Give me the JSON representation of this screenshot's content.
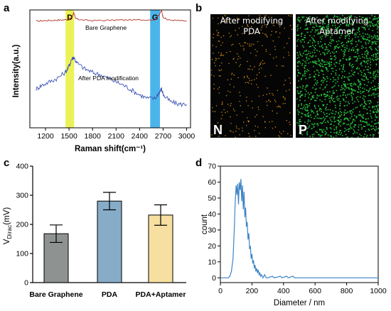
{
  "panels": {
    "a": "a",
    "b": "b",
    "c": "c",
    "d": "d"
  },
  "chart_data": [
    {
      "id": "raman",
      "type": "line",
      "xlabel": "Raman shift(cm⁻¹)",
      "ylabel": "Intensity(a.u.)",
      "xlim": [
        1000,
        3050
      ],
      "x_ticks": [
        1200,
        1500,
        1800,
        2100,
        2400,
        2700,
        3000
      ],
      "y_ticks": [],
      "bands": [
        {
          "label": "D",
          "from": 1455,
          "to": 1565,
          "color": "#e8f03a"
        },
        {
          "label": "G",
          "from": 2535,
          "to": 2660,
          "color": "#2ba8e8"
        }
      ],
      "series": [
        {
          "name": "Bare Graphene",
          "color": "#b5352b",
          "points": [
            [
              1080,
              0.905
            ],
            [
              1200,
              0.91
            ],
            [
              1300,
              0.912
            ],
            [
              1400,
              0.915
            ],
            [
              1500,
              0.918
            ],
            [
              1540,
              0.94
            ],
            [
              1560,
              0.98
            ],
            [
              1580,
              0.93
            ],
            [
              1650,
              0.915
            ],
            [
              1800,
              0.91
            ],
            [
              2000,
              0.912
            ],
            [
              2200,
              0.915
            ],
            [
              2400,
              0.915
            ],
            [
              2600,
              0.918
            ],
            [
              2650,
              0.96
            ],
            [
              2680,
              0.995
            ],
            [
              2700,
              0.94
            ],
            [
              2760,
              0.915
            ],
            [
              2900,
              0.91
            ],
            [
              3000,
              0.905
            ]
          ]
        },
        {
          "name": "After PDA modification",
          "color": "#3f55b4",
          "points": [
            [
              1080,
              0.33
            ],
            [
              1150,
              0.36
            ],
            [
              1250,
              0.39
            ],
            [
              1350,
              0.42
            ],
            [
              1450,
              0.47
            ],
            [
              1500,
              0.52
            ],
            [
              1530,
              0.58
            ],
            [
              1560,
              0.6
            ],
            [
              1600,
              0.55
            ],
            [
              1700,
              0.5
            ],
            [
              1800,
              0.47
            ],
            [
              1900,
              0.45
            ],
            [
              2000,
              0.42
            ],
            [
              2100,
              0.39
            ],
            [
              2200,
              0.36
            ],
            [
              2300,
              0.32
            ],
            [
              2400,
              0.28
            ],
            [
              2500,
              0.25
            ],
            [
              2600,
              0.25
            ],
            [
              2650,
              0.3
            ],
            [
              2680,
              0.33
            ],
            [
              2710,
              0.27
            ],
            [
              2800,
              0.22
            ],
            [
              2900,
              0.2
            ],
            [
              3000,
              0.2
            ]
          ]
        }
      ]
    },
    {
      "id": "mapping",
      "type": "other",
      "maps": [
        {
          "title_line1": "After modifying",
          "title_line2": "PDA",
          "element": "N",
          "color": "#d48a14"
        },
        {
          "title_line1": "After modifying",
          "title_line2": "Aptamer",
          "element": "P",
          "color": "#27c23a"
        }
      ]
    },
    {
      "id": "dirac",
      "type": "bar",
      "ylabel_main": "V",
      "ylabel_sub": "Dirac",
      "ylabel_unit": "(mV)",
      "ylim": [
        0,
        400
      ],
      "y_ticks": [
        0,
        100,
        200,
        300,
        400
      ],
      "categories": [
        "Bare Graphene",
        "PDA",
        "PDA+Aptamer"
      ],
      "values": [
        168,
        280,
        232
      ],
      "errors": [
        30,
        30,
        35
      ],
      "colors": [
        "#8e9290",
        "#86acc8",
        "#f6dfa0"
      ]
    },
    {
      "id": "size",
      "type": "line",
      "xlabel": "Diameter / nm",
      "ylabel": "count",
      "xlim": [
        0,
        1000
      ],
      "ylim": [
        -3,
        70
      ],
      "x_ticks": [
        0,
        200,
        400,
        600,
        800,
        1000
      ],
      "y_ticks": [
        0,
        10,
        20,
        30,
        40,
        50,
        60,
        70
      ],
      "color": "#3d84c6",
      "series": [
        {
          "name": "",
          "points": [
            [
              0,
              0
            ],
            [
              50,
              0
            ],
            [
              60,
              1
            ],
            [
              70,
              4
            ],
            [
              80,
              12
            ],
            [
              88,
              30
            ],
            [
              94,
              48
            ],
            [
              100,
              58
            ],
            [
              105,
              52
            ],
            [
              110,
              59
            ],
            [
              115,
              46
            ],
            [
              120,
              60
            ],
            [
              125,
              55
            ],
            [
              130,
              62
            ],
            [
              135,
              48
            ],
            [
              140,
              58
            ],
            [
              145,
              43
            ],
            [
              150,
              54
            ],
            [
              155,
              38
            ],
            [
              160,
              44
            ],
            [
              165,
              32
            ],
            [
              170,
              35
            ],
            [
              175,
              24
            ],
            [
              180,
              28
            ],
            [
              185,
              18
            ],
            [
              190,
              20
            ],
            [
              195,
              12
            ],
            [
              200,
              15
            ],
            [
              205,
              9
            ],
            [
              210,
              11
            ],
            [
              215,
              6
            ],
            [
              220,
              8
            ],
            [
              225,
              4
            ],
            [
              230,
              6
            ],
            [
              235,
              3
            ],
            [
              240,
              5
            ],
            [
              245,
              2
            ],
            [
              250,
              3
            ],
            [
              255,
              1
            ],
            [
              260,
              2
            ],
            [
              270,
              0
            ],
            [
              280,
              2
            ],
            [
              290,
              0
            ],
            [
              300,
              0
            ],
            [
              330,
              1
            ],
            [
              340,
              0
            ],
            [
              380,
              1
            ],
            [
              390,
              0
            ],
            [
              420,
              1
            ],
            [
              430,
              0
            ],
            [
              460,
              1
            ],
            [
              470,
              0
            ],
            [
              1000,
              0
            ]
          ]
        }
      ]
    }
  ]
}
